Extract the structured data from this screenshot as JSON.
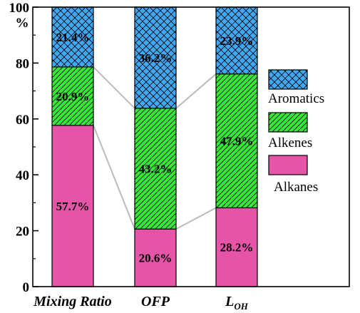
{
  "chart_data": {
    "type": "bar",
    "stacked": true,
    "categories": [
      "Mixing Ratio",
      "OFP",
      "L"
    ],
    "category_subscript": [
      "",
      "",
      "OH"
    ],
    "series": [
      {
        "name": "Alkanes",
        "values": [
          57.7,
          20.6,
          28.2
        ],
        "labels": [
          "57.7%",
          "20.6%",
          "28.2%"
        ],
        "color": "#E455A8",
        "pattern": "none"
      },
      {
        "name": "Alkenes",
        "values": [
          20.9,
          43.2,
          47.9
        ],
        "labels": [
          "20.9%",
          "43.2%",
          "47.9%"
        ],
        "color": "#33EE33",
        "pattern": "diagonal-hatch"
      },
      {
        "name": "Aromatics",
        "values": [
          21.4,
          36.2,
          23.9
        ],
        "labels": [
          "21.4%",
          "36.2%",
          "23.9%"
        ],
        "color": "#3FA9F5",
        "pattern": "cross-hatch"
      }
    ],
    "legend_order": [
      "Aromatics",
      "Alkenes",
      "Alkanes"
    ],
    "legend_position": "right",
    "connector_lines": true,
    "connector_color": "#BBBBBB",
    "ylim": [
      0,
      100
    ],
    "yticks": [
      0,
      20,
      40,
      60,
      80,
      100
    ],
    "ylabel": "%",
    "xlabel": "",
    "title": ""
  }
}
